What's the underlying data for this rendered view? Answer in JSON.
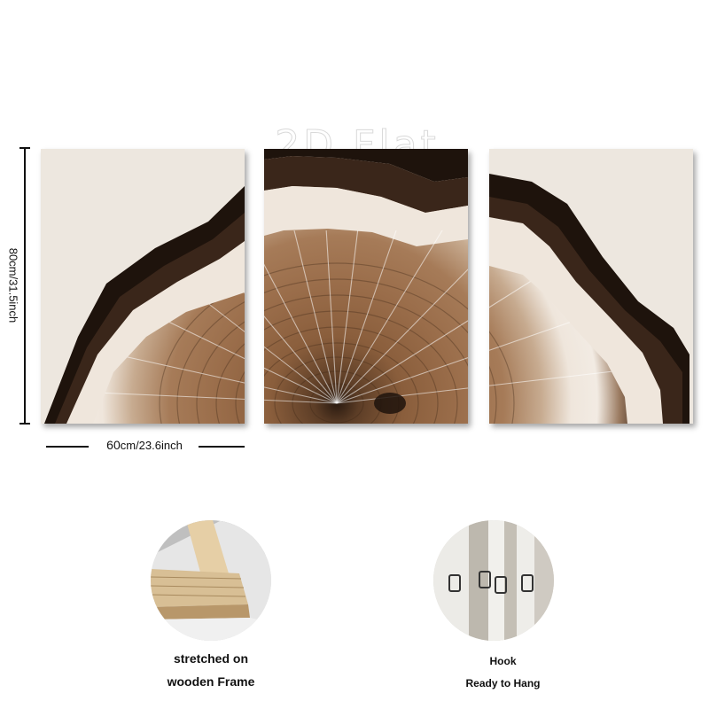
{
  "watermark": "2D Flat",
  "dimensions": {
    "height_label": "80cm/31.5inch",
    "width_label_number": "60",
    "width_label_rest": "cm/23.6inch"
  },
  "panels": [
    {
      "name": "left-panel"
    },
    {
      "name": "center-panel"
    },
    {
      "name": "right-panel"
    }
  ],
  "features": [
    {
      "name": "frame",
      "line1": "stretched on",
      "line2": "wooden Frame"
    },
    {
      "name": "hook",
      "line1": "Hook",
      "line2": "Ready to Hang"
    }
  ],
  "colors": {
    "background": "#ffffff",
    "canvas": "#ede7df",
    "bark": "#2b1b12",
    "sapwood": "#efe6dc",
    "heartwood": "#8a5e3c",
    "wood_frame": "#d8bf95"
  }
}
